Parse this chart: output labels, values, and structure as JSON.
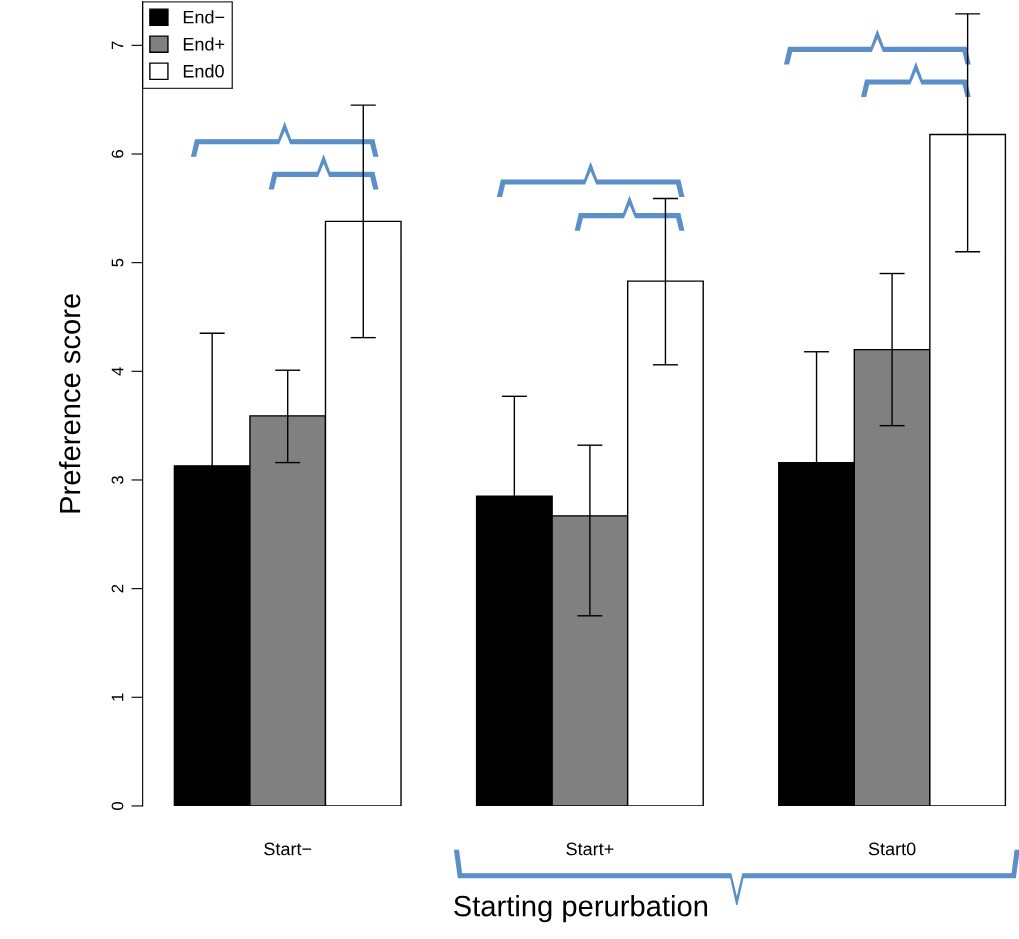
{
  "chart_data": {
    "type": "bar",
    "xlabel": "Starting perurbation",
    "ylabel": "Preference score",
    "categories": [
      "Start−",
      "Start+",
      "Start0"
    ],
    "series": [
      {
        "name": "End−",
        "color": "#000000",
        "values": [
          3.13,
          2.85,
          3.16
        ],
        "errors": [
          1.22,
          0.92,
          1.02
        ]
      },
      {
        "name": "End+",
        "color": "#808080",
        "values": [
          3.59,
          2.67,
          4.2
        ],
        "errors": [
          [
            3.16,
            4.01
          ],
          [
            1.75,
            3.32
          ],
          [
            3.5,
            4.9
          ]
        ]
      },
      {
        "name": "End0",
        "color": "#ffffff",
        "values": [
          5.38,
          4.83,
          6.18
        ],
        "errors": [
          [
            4.31,
            6.45
          ],
          [
            4.06,
            5.59
          ],
          [
            5.1,
            7.29
          ]
        ]
      }
    ],
    "ylim": [
      0,
      7.4
    ],
    "yticks": [
      0,
      1,
      2,
      3,
      4,
      5,
      6,
      7
    ],
    "legend": "top left",
    "grid": false
  }
}
